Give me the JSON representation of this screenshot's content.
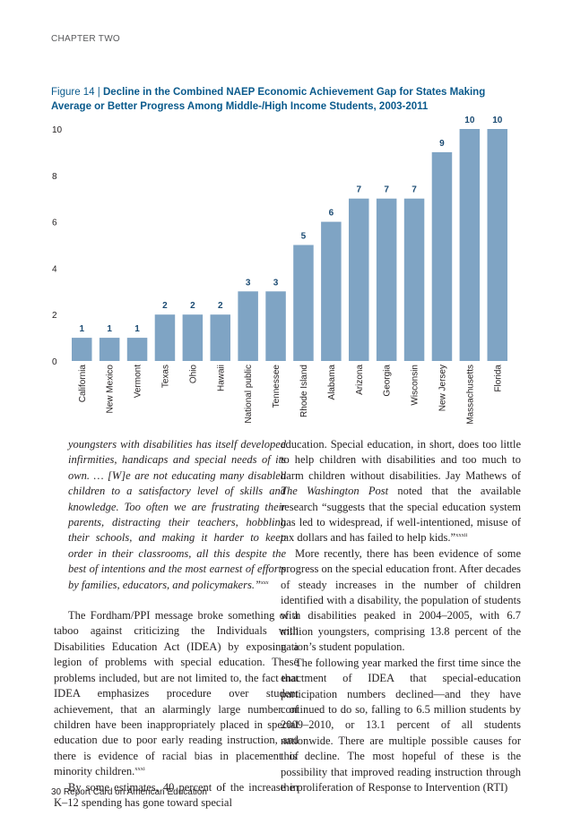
{
  "header": {
    "chapter_label": "CHAPTER TWO"
  },
  "figure": {
    "label": "Figure 14",
    "separator": "|",
    "title": "Decline in the Combined NAEP Economic Achievement Gap for States Making Average or Better Progress Among Middle-/High Income Students, 2003-2011"
  },
  "chart_data": {
    "type": "bar",
    "categories": [
      "California",
      "New Mexico",
      "Vermont",
      "Texas",
      "Ohio",
      "Hawaii",
      "National public",
      "Tennessee",
      "Rhode Island",
      "Alabama",
      "Arizona",
      "Georgia",
      "Wisconsin",
      "New Jersey",
      "Massachusetts",
      "Florida"
    ],
    "values": [
      1,
      1,
      1,
      2,
      2,
      2,
      3,
      3,
      5,
      6,
      7,
      7,
      7,
      9,
      10,
      10
    ],
    "data_labels": [
      "1",
      "1",
      "1",
      "2",
      "2",
      "2",
      "3",
      "3",
      "5",
      "6",
      "7",
      "7",
      "7",
      "9",
      "10",
      "10"
    ],
    "yticks": [
      "0",
      "2",
      "4",
      "6",
      "8",
      "10"
    ],
    "ylim": [
      0,
      10
    ],
    "grid": false,
    "bar_color": "#7fa4c4",
    "label_color": "#1a4a72"
  },
  "body": {
    "left_quote": "youngsters with disabilities has itself developed infirmities, handicaps and special needs of its own. … [W]e are not educating many disabled children to a satisfactory level of skills and knowledge. Too often we are frustrating their parents, distracting their teachers, hobbling their schools, and making it harder to keep order in their classrooms, all this despite the best of intentions and the most earnest of efforts by families, educators, and policymakers.”",
    "left_quote_note": "xxx",
    "left_p1": "The Fordham/PPI message broke something of a taboo against criticizing the Individuals with Disabilities Education Act (IDEA) by exposing a legion of problems with special education. These problems included, but are not limited to, the fact that IDEA emphasizes procedure over student achievement, that an alarmingly large number of children have been inappropriately placed in special education due to poor early reading instruction, and there is evidence of racial bias in placement of minority children.",
    "left_p1_note": "xxxi",
    "left_p2": "By some estimates, 40 percent of the increase in K–12 spending has gone toward special",
    "right_p1_a": "education. Special education, in short, does too little to help children with disabilities and too much to harm children without disabilities. Jay Mathews of ",
    "right_p1_pub": "The Washington Post",
    "right_p1_b": " noted that the available research “suggests that the special education system has led to widespread, if well-intentioned, misuse of tax dollars and has failed to help kids.”",
    "right_p1_note": "xxxii",
    "right_p2": "More recently, there has been evidence of some progress on the special education front. After decades of steady increases in the number of children identified with a disability, the population of students with disabilities peaked in 2004–2005, with 6.7 million youngsters, comprising 13.8 percent of the nation’s student population.",
    "right_p3": "The following year marked the first time since the enactment of IDEA that special-education participation numbers declined—and they have continued to do so, falling to 6.5 million students by 2009–2010, or 13.1 percent of all students nationwide. There are multiple possible causes for this decline. The most hopeful of these is the possibility that improved reading instruction through the proliferation of Response to Intervention (RTI)"
  },
  "footer": {
    "page_number": "30",
    "publication": "Report Card on American Education"
  }
}
